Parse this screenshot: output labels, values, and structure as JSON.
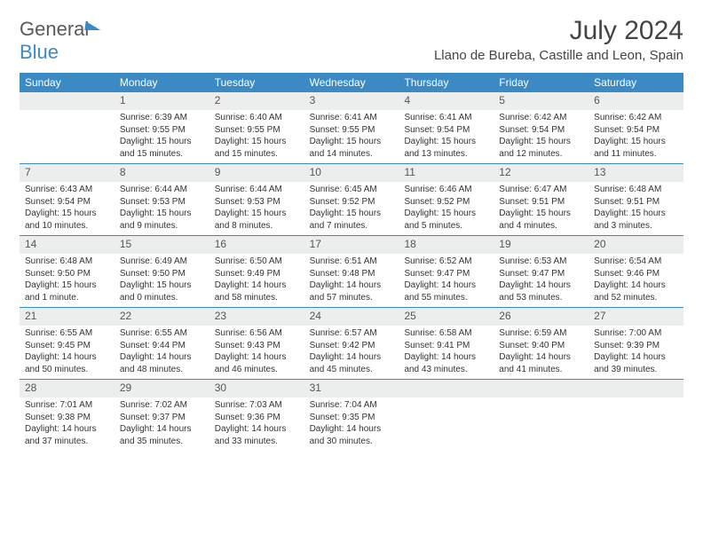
{
  "logo": {
    "word1": "General",
    "word2": "Blue"
  },
  "title": "July 2024",
  "location": "Llano de Bureba, Castille and Leon, Spain",
  "colors": {
    "header_bg": "#3b8ac4",
    "daynum_bg": "#eceeee",
    "rule": "#3b8ac4",
    "text": "#333333"
  },
  "daynames": [
    "Sunday",
    "Monday",
    "Tuesday",
    "Wednesday",
    "Thursday",
    "Friday",
    "Saturday"
  ],
  "weeks": [
    [
      {
        "n": "",
        "sr": "",
        "ss": "",
        "d1": "",
        "d2": ""
      },
      {
        "n": "1",
        "sr": "Sunrise: 6:39 AM",
        "ss": "Sunset: 9:55 PM",
        "d1": "Daylight: 15 hours",
        "d2": "and 15 minutes."
      },
      {
        "n": "2",
        "sr": "Sunrise: 6:40 AM",
        "ss": "Sunset: 9:55 PM",
        "d1": "Daylight: 15 hours",
        "d2": "and 15 minutes."
      },
      {
        "n": "3",
        "sr": "Sunrise: 6:41 AM",
        "ss": "Sunset: 9:55 PM",
        "d1": "Daylight: 15 hours",
        "d2": "and 14 minutes."
      },
      {
        "n": "4",
        "sr": "Sunrise: 6:41 AM",
        "ss": "Sunset: 9:54 PM",
        "d1": "Daylight: 15 hours",
        "d2": "and 13 minutes."
      },
      {
        "n": "5",
        "sr": "Sunrise: 6:42 AM",
        "ss": "Sunset: 9:54 PM",
        "d1": "Daylight: 15 hours",
        "d2": "and 12 minutes."
      },
      {
        "n": "6",
        "sr": "Sunrise: 6:42 AM",
        "ss": "Sunset: 9:54 PM",
        "d1": "Daylight: 15 hours",
        "d2": "and 11 minutes."
      }
    ],
    [
      {
        "n": "7",
        "sr": "Sunrise: 6:43 AM",
        "ss": "Sunset: 9:54 PM",
        "d1": "Daylight: 15 hours",
        "d2": "and 10 minutes."
      },
      {
        "n": "8",
        "sr": "Sunrise: 6:44 AM",
        "ss": "Sunset: 9:53 PM",
        "d1": "Daylight: 15 hours",
        "d2": "and 9 minutes."
      },
      {
        "n": "9",
        "sr": "Sunrise: 6:44 AM",
        "ss": "Sunset: 9:53 PM",
        "d1": "Daylight: 15 hours",
        "d2": "and 8 minutes."
      },
      {
        "n": "10",
        "sr": "Sunrise: 6:45 AM",
        "ss": "Sunset: 9:52 PM",
        "d1": "Daylight: 15 hours",
        "d2": "and 7 minutes."
      },
      {
        "n": "11",
        "sr": "Sunrise: 6:46 AM",
        "ss": "Sunset: 9:52 PM",
        "d1": "Daylight: 15 hours",
        "d2": "and 5 minutes."
      },
      {
        "n": "12",
        "sr": "Sunrise: 6:47 AM",
        "ss": "Sunset: 9:51 PM",
        "d1": "Daylight: 15 hours",
        "d2": "and 4 minutes."
      },
      {
        "n": "13",
        "sr": "Sunrise: 6:48 AM",
        "ss": "Sunset: 9:51 PM",
        "d1": "Daylight: 15 hours",
        "d2": "and 3 minutes."
      }
    ],
    [
      {
        "n": "14",
        "sr": "Sunrise: 6:48 AM",
        "ss": "Sunset: 9:50 PM",
        "d1": "Daylight: 15 hours",
        "d2": "and 1 minute."
      },
      {
        "n": "15",
        "sr": "Sunrise: 6:49 AM",
        "ss": "Sunset: 9:50 PM",
        "d1": "Daylight: 15 hours",
        "d2": "and 0 minutes."
      },
      {
        "n": "16",
        "sr": "Sunrise: 6:50 AM",
        "ss": "Sunset: 9:49 PM",
        "d1": "Daylight: 14 hours",
        "d2": "and 58 minutes."
      },
      {
        "n": "17",
        "sr": "Sunrise: 6:51 AM",
        "ss": "Sunset: 9:48 PM",
        "d1": "Daylight: 14 hours",
        "d2": "and 57 minutes."
      },
      {
        "n": "18",
        "sr": "Sunrise: 6:52 AM",
        "ss": "Sunset: 9:47 PM",
        "d1": "Daylight: 14 hours",
        "d2": "and 55 minutes."
      },
      {
        "n": "19",
        "sr": "Sunrise: 6:53 AM",
        "ss": "Sunset: 9:47 PM",
        "d1": "Daylight: 14 hours",
        "d2": "and 53 minutes."
      },
      {
        "n": "20",
        "sr": "Sunrise: 6:54 AM",
        "ss": "Sunset: 9:46 PM",
        "d1": "Daylight: 14 hours",
        "d2": "and 52 minutes."
      }
    ],
    [
      {
        "n": "21",
        "sr": "Sunrise: 6:55 AM",
        "ss": "Sunset: 9:45 PM",
        "d1": "Daylight: 14 hours",
        "d2": "and 50 minutes."
      },
      {
        "n": "22",
        "sr": "Sunrise: 6:55 AM",
        "ss": "Sunset: 9:44 PM",
        "d1": "Daylight: 14 hours",
        "d2": "and 48 minutes."
      },
      {
        "n": "23",
        "sr": "Sunrise: 6:56 AM",
        "ss": "Sunset: 9:43 PM",
        "d1": "Daylight: 14 hours",
        "d2": "and 46 minutes."
      },
      {
        "n": "24",
        "sr": "Sunrise: 6:57 AM",
        "ss": "Sunset: 9:42 PM",
        "d1": "Daylight: 14 hours",
        "d2": "and 45 minutes."
      },
      {
        "n": "25",
        "sr": "Sunrise: 6:58 AM",
        "ss": "Sunset: 9:41 PM",
        "d1": "Daylight: 14 hours",
        "d2": "and 43 minutes."
      },
      {
        "n": "26",
        "sr": "Sunrise: 6:59 AM",
        "ss": "Sunset: 9:40 PM",
        "d1": "Daylight: 14 hours",
        "d2": "and 41 minutes."
      },
      {
        "n": "27",
        "sr": "Sunrise: 7:00 AM",
        "ss": "Sunset: 9:39 PM",
        "d1": "Daylight: 14 hours",
        "d2": "and 39 minutes."
      }
    ],
    [
      {
        "n": "28",
        "sr": "Sunrise: 7:01 AM",
        "ss": "Sunset: 9:38 PM",
        "d1": "Daylight: 14 hours",
        "d2": "and 37 minutes."
      },
      {
        "n": "29",
        "sr": "Sunrise: 7:02 AM",
        "ss": "Sunset: 9:37 PM",
        "d1": "Daylight: 14 hours",
        "d2": "and 35 minutes."
      },
      {
        "n": "30",
        "sr": "Sunrise: 7:03 AM",
        "ss": "Sunset: 9:36 PM",
        "d1": "Daylight: 14 hours",
        "d2": "and 33 minutes."
      },
      {
        "n": "31",
        "sr": "Sunrise: 7:04 AM",
        "ss": "Sunset: 9:35 PM",
        "d1": "Daylight: 14 hours",
        "d2": "and 30 minutes."
      },
      {
        "n": "",
        "sr": "",
        "ss": "",
        "d1": "",
        "d2": ""
      },
      {
        "n": "",
        "sr": "",
        "ss": "",
        "d1": "",
        "d2": ""
      },
      {
        "n": "",
        "sr": "",
        "ss": "",
        "d1": "",
        "d2": ""
      }
    ]
  ]
}
